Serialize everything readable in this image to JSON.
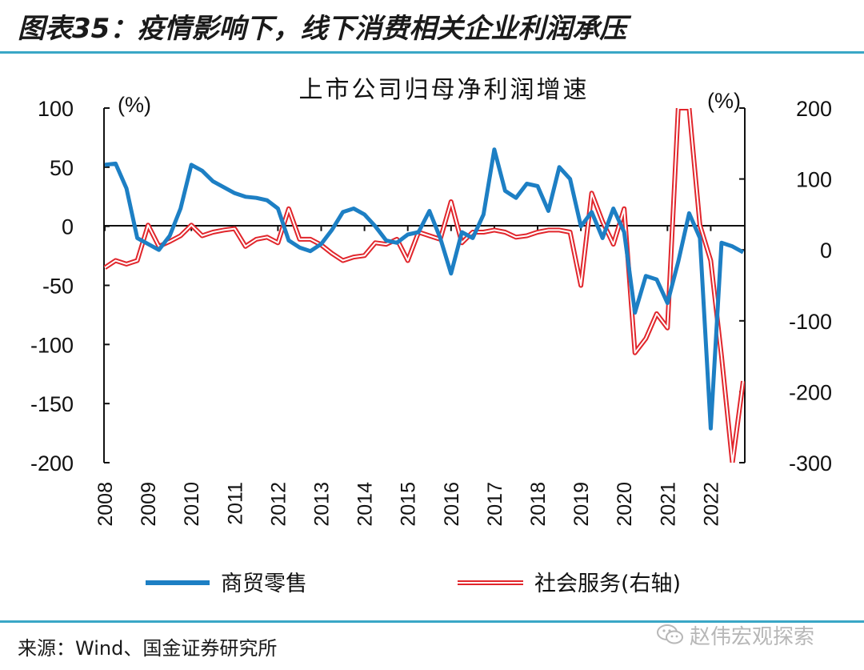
{
  "figure_title": "图表35：疫情影响下，线下消费相关企业利润承压",
  "source_note": "来源：Wind、国金证券研究所",
  "watermark": {
    "text": "赵伟宏观探索",
    "icon": "wechat-icon"
  },
  "colors": {
    "accent_rule": "#3aa7c6",
    "retail": "#1d7fc4",
    "services": "#e1262c"
  },
  "chart_data": {
    "type": "line",
    "title": "上市公司归母净利润增速",
    "left_unit": "(%)",
    "right_unit": "(%)",
    "left_ylim": [
      -200,
      100
    ],
    "right_ylim": [
      -300,
      200
    ],
    "left_ticks": [
      "100",
      "50",
      "0",
      "-50",
      "-100",
      "-150",
      "-200"
    ],
    "right_ticks": [
      "200",
      "100",
      "0",
      "-100",
      "-200",
      "-300"
    ],
    "x_ticks": [
      "2008",
      "2009",
      "2010",
      "2011",
      "2012",
      "2013",
      "2014",
      "2015",
      "2016",
      "2017",
      "2018",
      "2019",
      "2020",
      "2021",
      "2022"
    ],
    "legend_position": "bottom",
    "series": [
      {
        "name": "商贸零售",
        "axis": "left",
        "style": "solid",
        "color": "#1d7fc4",
        "points": [
          {
            "x": "2008Q1",
            "y": 52
          },
          {
            "x": "2008Q2",
            "y": 53
          },
          {
            "x": "2008Q3",
            "y": 32
          },
          {
            "x": "2008Q4",
            "y": -10
          },
          {
            "x": "2009Q1",
            "y": -15
          },
          {
            "x": "2009Q2",
            "y": -20
          },
          {
            "x": "2009Q3",
            "y": -8
          },
          {
            "x": "2009Q4",
            "y": 15
          },
          {
            "x": "2010Q1",
            "y": 52
          },
          {
            "x": "2010Q2",
            "y": 47
          },
          {
            "x": "2010Q3",
            "y": 38
          },
          {
            "x": "2010Q4",
            "y": 33
          },
          {
            "x": "2011Q1",
            "y": 28
          },
          {
            "x": "2011Q2",
            "y": 25
          },
          {
            "x": "2011Q3",
            "y": 24
          },
          {
            "x": "2011Q4",
            "y": 22
          },
          {
            "x": "2012Q1",
            "y": 15
          },
          {
            "x": "2012Q2",
            "y": -12
          },
          {
            "x": "2012Q3",
            "y": -18
          },
          {
            "x": "2012Q4",
            "y": -21
          },
          {
            "x": "2013Q1",
            "y": -15
          },
          {
            "x": "2013Q2",
            "y": -3
          },
          {
            "x": "2013Q3",
            "y": 12
          },
          {
            "x": "2013Q4",
            "y": 15
          },
          {
            "x": "2014Q1",
            "y": 10
          },
          {
            "x": "2014Q2",
            "y": 0
          },
          {
            "x": "2014Q3",
            "y": -12
          },
          {
            "x": "2014Q4",
            "y": -14
          },
          {
            "x": "2015Q1",
            "y": -7
          },
          {
            "x": "2015Q2",
            "y": -5
          },
          {
            "x": "2015Q3",
            "y": 13
          },
          {
            "x": "2015Q4",
            "y": -10
          },
          {
            "x": "2016Q1",
            "y": -40
          },
          {
            "x": "2016Q2",
            "y": -5
          },
          {
            "x": "2016Q3",
            "y": -10
          },
          {
            "x": "2016Q4",
            "y": 10
          },
          {
            "x": "2017Q1",
            "y": 65
          },
          {
            "x": "2017Q2",
            "y": 30
          },
          {
            "x": "2017Q3",
            "y": 24
          },
          {
            "x": "2017Q4",
            "y": 36
          },
          {
            "x": "2018Q1",
            "y": 34
          },
          {
            "x": "2018Q2",
            "y": 13
          },
          {
            "x": "2018Q3",
            "y": 50
          },
          {
            "x": "2018Q4",
            "y": 40
          },
          {
            "x": "2019Q1",
            "y": 0
          },
          {
            "x": "2019Q2",
            "y": 12
          },
          {
            "x": "2019Q3",
            "y": -10
          },
          {
            "x": "2019Q4",
            "y": 15
          },
          {
            "x": "2020Q1",
            "y": -5
          },
          {
            "x": "2020Q2",
            "y": -73
          },
          {
            "x": "2020Q3",
            "y": -42
          },
          {
            "x": "2020Q4",
            "y": -45
          },
          {
            "x": "2021Q1",
            "y": -65
          },
          {
            "x": "2021Q2",
            "y": -30
          },
          {
            "x": "2021Q3",
            "y": 11
          },
          {
            "x": "2021Q4",
            "y": -10
          },
          {
            "x": "2022Q1",
            "y": -171
          },
          {
            "x": "2022Q2",
            "y": -14
          },
          {
            "x": "2022Q3",
            "y": -17
          },
          {
            "x": "2022Q4",
            "y": -22
          }
        ]
      },
      {
        "name": "社会服务(右轴)",
        "axis": "right",
        "style": "double",
        "color": "#e1262c",
        "points": [
          {
            "x": "2008Q1",
            "y": -25
          },
          {
            "x": "2008Q2",
            "y": -15
          },
          {
            "x": "2008Q3",
            "y": -20
          },
          {
            "x": "2008Q4",
            "y": -15
          },
          {
            "x": "2009Q1",
            "y": 35
          },
          {
            "x": "2009Q2",
            "y": 5
          },
          {
            "x": "2009Q3",
            "y": 12
          },
          {
            "x": "2009Q4",
            "y": 20
          },
          {
            "x": "2010Q1",
            "y": 35
          },
          {
            "x": "2010Q2",
            "y": 20
          },
          {
            "x": "2010Q3",
            "y": 25
          },
          {
            "x": "2010Q4",
            "y": 28
          },
          {
            "x": "2011Q1",
            "y": 30
          },
          {
            "x": "2011Q2",
            "y": 5
          },
          {
            "x": "2011Q3",
            "y": 15
          },
          {
            "x": "2011Q4",
            "y": 18
          },
          {
            "x": "2012Q1",
            "y": 10
          },
          {
            "x": "2012Q2",
            "y": 58
          },
          {
            "x": "2012Q3",
            "y": 15
          },
          {
            "x": "2012Q4",
            "y": 15
          },
          {
            "x": "2013Q1",
            "y": 7
          },
          {
            "x": "2013Q2",
            "y": -5
          },
          {
            "x": "2013Q3",
            "y": -15
          },
          {
            "x": "2013Q4",
            "y": -10
          },
          {
            "x": "2014Q1",
            "y": -8
          },
          {
            "x": "2014Q2",
            "y": 10
          },
          {
            "x": "2014Q3",
            "y": 8
          },
          {
            "x": "2014Q4",
            "y": 15
          },
          {
            "x": "2015Q1",
            "y": -15
          },
          {
            "x": "2015Q2",
            "y": 25
          },
          {
            "x": "2015Q3",
            "y": 20
          },
          {
            "x": "2015Q4",
            "y": 15
          },
          {
            "x": "2016Q1",
            "y": 68
          },
          {
            "x": "2016Q2",
            "y": 10
          },
          {
            "x": "2016Q3",
            "y": 25
          },
          {
            "x": "2016Q4",
            "y": 25
          },
          {
            "x": "2017Q1",
            "y": 28
          },
          {
            "x": "2017Q2",
            "y": 25
          },
          {
            "x": "2017Q3",
            "y": 18
          },
          {
            "x": "2017Q4",
            "y": 20
          },
          {
            "x": "2018Q1",
            "y": 25
          },
          {
            "x": "2018Q2",
            "y": 28
          },
          {
            "x": "2018Q3",
            "y": 28
          },
          {
            "x": "2018Q4",
            "y": 25
          },
          {
            "x": "2019Q1",
            "y": -50
          },
          {
            "x": "2019Q2",
            "y": 80
          },
          {
            "x": "2019Q3",
            "y": 40
          },
          {
            "x": "2019Q4",
            "y": 8
          },
          {
            "x": "2020Q1",
            "y": 58
          },
          {
            "x": "2020Q2",
            "y": -145
          },
          {
            "x": "2020Q3",
            "y": -125
          },
          {
            "x": "2020Q4",
            "y": -90
          },
          {
            "x": "2021Q1",
            "y": -110
          },
          {
            "x": "2021Q2",
            "y": 200
          },
          {
            "x": "2021Q3",
            "y": 200
          },
          {
            "x": "2021Q4",
            "y": 35
          },
          {
            "x": "2022Q1",
            "y": -15
          },
          {
            "x": "2022Q2",
            "y": -150
          },
          {
            "x": "2022Q3",
            "y": -300
          },
          {
            "x": "2022Q4",
            "y": -185
          }
        ]
      }
    ]
  }
}
